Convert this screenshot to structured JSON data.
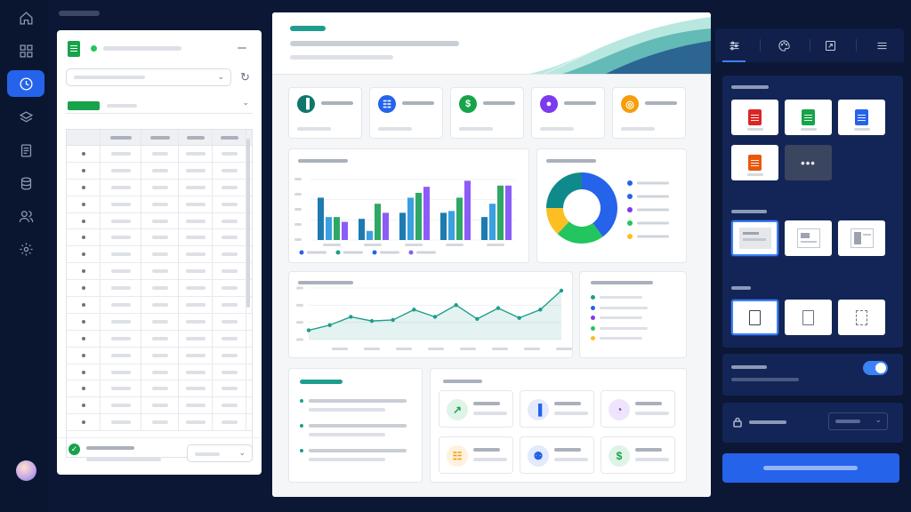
{
  "theme": {
    "background": "#0b1734",
    "accent": "#2563eb",
    "success": "#16a34a",
    "panel": "#132556"
  },
  "rail": {
    "items": [
      {
        "icon": "home-icon",
        "active": false
      },
      {
        "icon": "grid-icon",
        "active": false
      },
      {
        "icon": "clock-icon",
        "active": true
      },
      {
        "icon": "layers-icon",
        "active": false
      },
      {
        "icon": "document-icon",
        "active": false
      },
      {
        "icon": "database-icon",
        "active": false
      },
      {
        "icon": "users-icon",
        "active": false
      },
      {
        "icon": "gear-icon",
        "active": false
      }
    ]
  },
  "spreadsheet": {
    "icon": "google-sheets-icon",
    "status_color": "#22c55e",
    "rows": 17,
    "columns": 5,
    "footer_status": "check-circle-icon"
  },
  "dashboard": {
    "kpis": [
      {
        "icon": "bar-chart-icon",
        "color": "#0f766e"
      },
      {
        "icon": "cart-icon",
        "color": "#2563eb"
      },
      {
        "icon": "dollar-icon",
        "color": "#16a34a"
      },
      {
        "icon": "user-icon",
        "color": "#7c3aed"
      },
      {
        "icon": "target-icon",
        "color": "#f59e0b"
      }
    ],
    "mini_cards": [
      {
        "icon": "trend-up-icon",
        "color": "#16a34a"
      },
      {
        "icon": "bar-chart-icon",
        "color": "#2563eb"
      },
      {
        "icon": "pie-chart-icon",
        "color": "#7c3aed"
      },
      {
        "icon": "cart-icon",
        "color": "#f59e0b"
      },
      {
        "icon": "users-icon",
        "color": "#2563eb"
      },
      {
        "icon": "dollar-icon",
        "color": "#16a34a"
      }
    ]
  },
  "chart_data": [
    {
      "type": "bar",
      "series": [
        {
          "color": "#1d7bb0",
          "values": [
            0.7,
            0.35,
            0.45,
            0.45,
            0.38
          ]
        },
        {
          "color": "#3aa0e0",
          "values": [
            0.38,
            0.15,
            0.7,
            0.48,
            0.6
          ]
        },
        {
          "color": "#2fa866",
          "values": [
            0.38,
            0.6,
            0.78,
            0.7,
            0.9
          ]
        },
        {
          "color": "#8b5cf6",
          "values": [
            0.3,
            0.45,
            0.88,
            0.98,
            0.9
          ]
        }
      ],
      "grid": true
    },
    {
      "type": "pie",
      "values": [
        40,
        22,
        13,
        25
      ],
      "colors": [
        "#2563eb",
        "#22c55e",
        "#fbbf24",
        "#0f8a8a"
      ],
      "legend_colors": [
        "#2563eb",
        "#2563eb",
        "#7c3aed",
        "#22c55e",
        "#fbbf24"
      ]
    },
    {
      "type": "area",
      "values": [
        0.18,
        0.28,
        0.44,
        0.36,
        0.38,
        0.58,
        0.44,
        0.67,
        0.4,
        0.61,
        0.42,
        0.58,
        0.95
      ],
      "color": "#1e9e8a",
      "grid": true
    }
  ],
  "donut_legend": {
    "colors": [
      "#2563eb",
      "#2563eb",
      "#7c3aed",
      "#22c55e",
      "#fbbf24"
    ]
  },
  "settings": {
    "tabs": [
      "sliders-icon",
      "palette-icon",
      "crop-icon",
      "menu-icon"
    ],
    "file_types": [
      {
        "icon": "pdf-icon",
        "color": "#dc2626"
      },
      {
        "icon": "excel-icon",
        "color": "#16a34a"
      },
      {
        "icon": "word-icon",
        "color": "#2563eb"
      },
      {
        "icon": "powerpoint-icon",
        "color": "#ea580c"
      }
    ],
    "more_label": "•••",
    "toggle_on": true
  }
}
